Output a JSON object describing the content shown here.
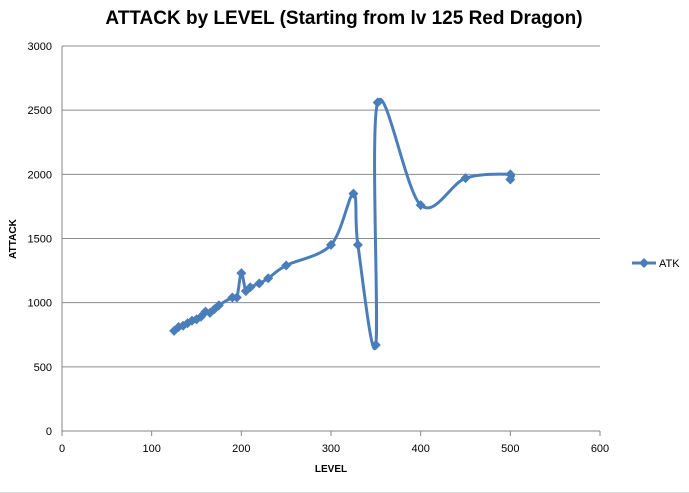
{
  "chart_data": {
    "type": "line",
    "title": "ATTACK by LEVEL (Starting from lv 125 Red Dragon)",
    "xlabel": "LEVEL",
    "ylabel": "ATTACK",
    "xlim": [
      0,
      600
    ],
    "ylim": [
      0,
      3000
    ],
    "xticks": [
      0,
      100,
      200,
      300,
      400,
      500,
      600
    ],
    "yticks": [
      0,
      500,
      1000,
      1500,
      2000,
      2500,
      3000
    ],
    "grid": "horizontal",
    "legend": "right",
    "smooth": true,
    "color": "#4a7ebb",
    "series": [
      {
        "name": "ATK",
        "x": [
          125,
          130,
          135,
          140,
          145,
          150,
          155,
          160,
          165,
          170,
          175,
          190,
          195,
          200,
          205,
          210,
          220,
          230,
          250,
          300,
          325,
          330,
          350,
          352,
          400,
          450,
          500,
          500
        ],
        "y": [
          780,
          810,
          820,
          840,
          860,
          870,
          890,
          930,
          920,
          950,
          980,
          1040,
          1040,
          1230,
          1090,
          1120,
          1150,
          1190,
          1290,
          1450,
          1850,
          1450,
          670,
          2560,
          1760,
          1970,
          2000,
          1960
        ]
      }
    ]
  }
}
